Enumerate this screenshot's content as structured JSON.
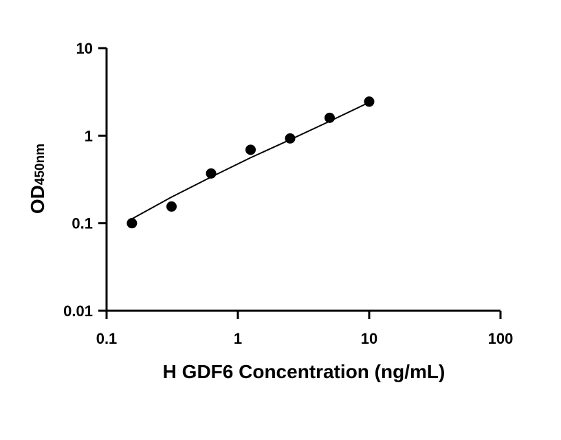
{
  "chart_data": {
    "type": "scatter",
    "title": "",
    "xlabel": "H GDF6 Concentration (ng/mL)",
    "ylabel": {
      "main": "OD",
      "subscript": "450nm"
    },
    "xscale": "log",
    "yscale": "log",
    "xlim": [
      0.1,
      100
    ],
    "ylim": [
      0.01,
      10
    ],
    "x_ticks": [
      0.1,
      1,
      10,
      100
    ],
    "x_tick_labels": [
      "0.1",
      "1",
      "10",
      "100"
    ],
    "y_ticks": [
      0.01,
      0.1,
      1,
      10
    ],
    "y_tick_labels": [
      "0.01",
      "0.1",
      "1",
      "10"
    ],
    "grid": false,
    "legend": "none",
    "colors": {
      "axis": "#000000",
      "points": "#000000",
      "fit_line": "#000000"
    },
    "series": [
      {
        "x": [
          0.156,
          0.3125,
          0.625,
          1.25,
          2.5,
          5,
          10
        ],
        "y": [
          0.1,
          0.155,
          0.37,
          0.69,
          0.93,
          1.6,
          2.45
        ]
      }
    ],
    "fit_curve": {
      "x": [
        0.156,
        0.3125,
        0.625,
        1.25,
        2.5,
        5,
        10
      ],
      "y": [
        0.112,
        0.199,
        0.337,
        0.56,
        0.9,
        1.46,
        2.4
      ]
    }
  }
}
